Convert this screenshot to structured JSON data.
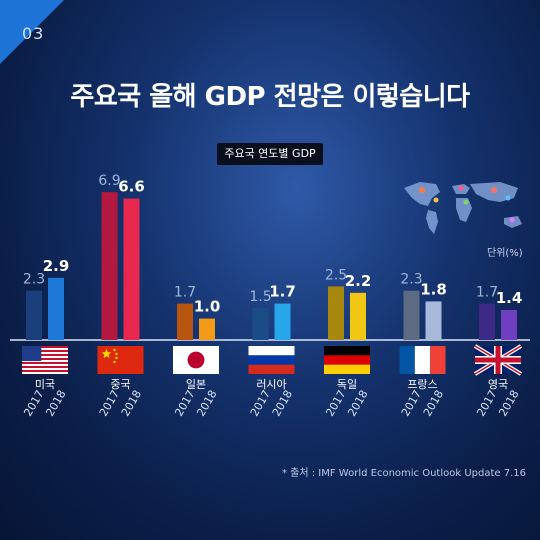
{
  "page": {
    "number": "03"
  },
  "title": "주요국 올해 GDP 전망은 이렇습니다",
  "unit": "단위(%)",
  "source": "* 출처 : IMF World Economic Outlook Update 7.16",
  "colors": {
    "corner": "#1e74d6",
    "background": "#0b1f4a"
  },
  "chart_data": {
    "type": "bar",
    "title": "주요국 연도별 GDP",
    "ylabel": "",
    "xlabel": "",
    "ylim": [
      0,
      7
    ],
    "years": [
      "2017",
      "2018"
    ],
    "categories": [
      "미국",
      "중국",
      "일본",
      "러시아",
      "독일",
      "프랑스",
      "영국"
    ],
    "values": [
      [
        2.3,
        2.9
      ],
      [
        6.9,
        6.6
      ],
      [
        1.7,
        1.0
      ],
      [
        1.5,
        1.7
      ],
      [
        2.5,
        2.2
      ],
      [
        2.3,
        1.8
      ],
      [
        1.7,
        1.4
      ]
    ],
    "value_labels": [
      [
        "2.3",
        "2.9"
      ],
      [
        "6.9",
        "6.6"
      ],
      [
        "1.7",
        "1.0"
      ],
      [
        "1.5",
        "1.7"
      ],
      [
        "2.5",
        "2.2"
      ],
      [
        "2.3",
        "1.8"
      ],
      [
        "1.7",
        "1.4"
      ]
    ],
    "bar_colors": [
      [
        "#1a3f7a",
        "#1d78d8"
      ],
      [
        "#b3183f",
        "#e8284e"
      ],
      [
        "#b8560f",
        "#f39a18"
      ],
      [
        "#1a4d86",
        "#27a6ea"
      ],
      [
        "#a8870f",
        "#f2c714"
      ],
      [
        "#5d6b82",
        "#a9b9dc"
      ],
      [
        "#3d2a86",
        "#6f3fbf"
      ]
    ],
    "flags": [
      "usa-flag-icon",
      "china-flag-icon",
      "japan-flag-icon",
      "russia-flag-icon",
      "germany-flag-icon",
      "france-flag-icon",
      "uk-flag-icon"
    ]
  }
}
